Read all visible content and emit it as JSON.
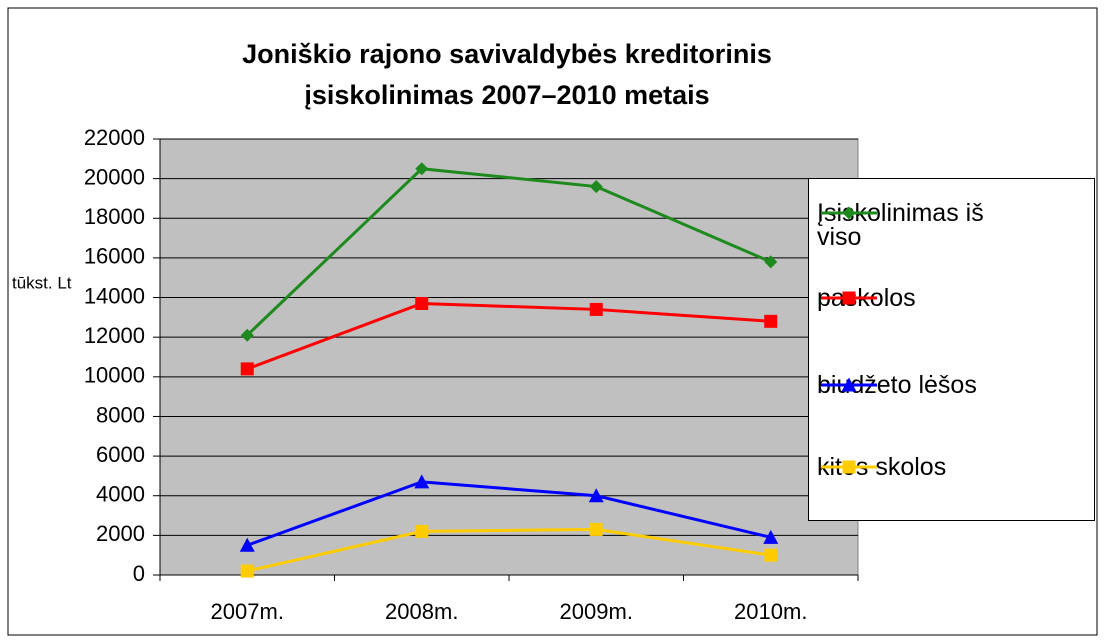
{
  "chart_data": {
    "type": "line",
    "title": "Joniškio rajono savivaldybės kreditorinis įsiskolinimas 2007–2010 metais",
    "y_label": "tūkst. Lt",
    "categories": [
      "2007m.",
      "2008m.",
      "2009m.",
      "2010m."
    ],
    "series": [
      {
        "name": "Įsiskolinimas iš viso",
        "color": "#1e8a1e",
        "marker": "diamond",
        "values": [
          12100,
          20500,
          19600,
          15800
        ]
      },
      {
        "name": "paskolos",
        "color": "#ff0000",
        "marker": "square",
        "values": [
          10400,
          13700,
          13400,
          12800
        ]
      },
      {
        "name": "biudžeto lėšos",
        "color": "#0000ff",
        "marker": "triangle",
        "values": [
          1500,
          4700,
          4000,
          1900
        ]
      },
      {
        "name": "kitos skolos",
        "color": "#ffcc00",
        "marker": "square",
        "values": [
          200,
          2200,
          2300,
          1000
        ]
      }
    ],
    "ylim": [
      0,
      22000
    ],
    "yticks": [
      0,
      2000,
      4000,
      6000,
      8000,
      10000,
      12000,
      14000,
      16000,
      18000,
      20000,
      22000
    ],
    "grid": true,
    "plot_background": "#c0c0c0",
    "legend": "right"
  }
}
